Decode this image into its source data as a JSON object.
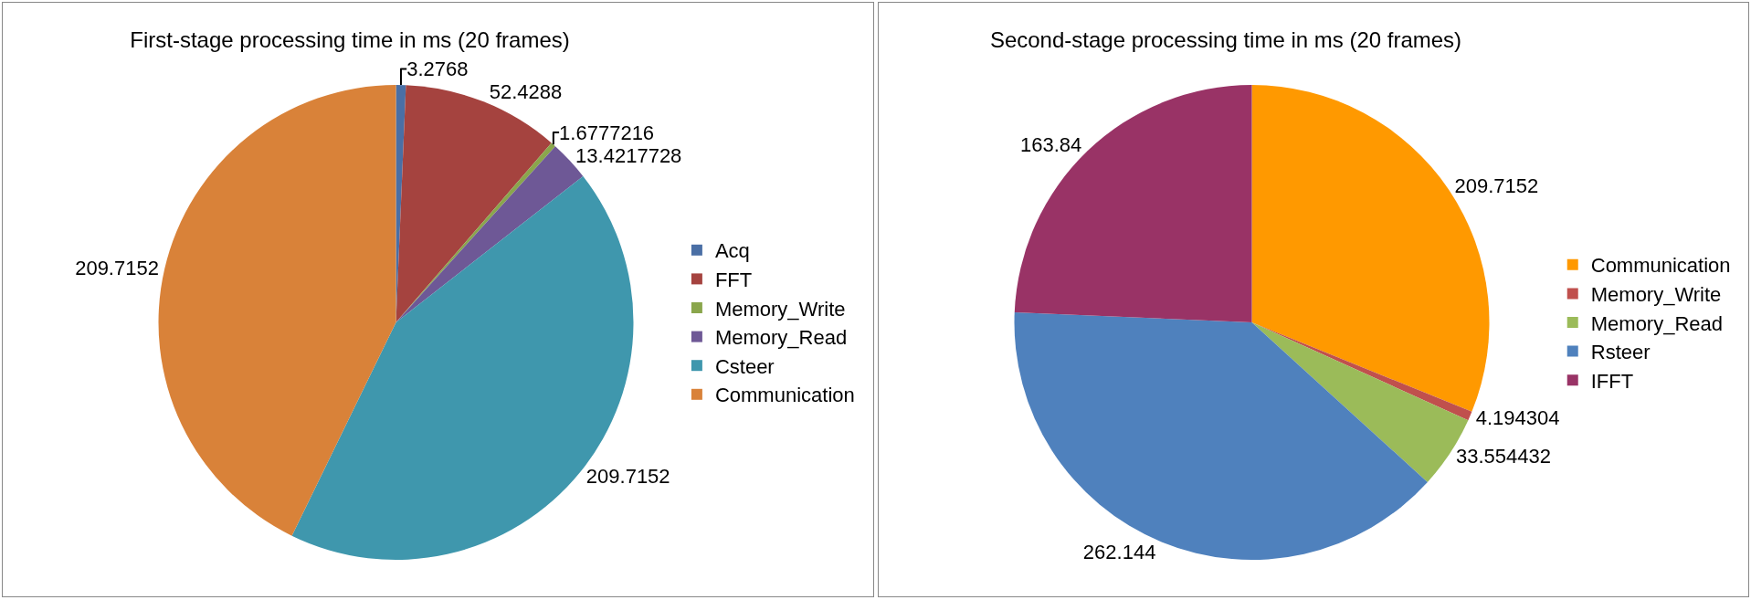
{
  "chart_data": [
    {
      "type": "pie",
      "title": "First-stage processing time in ms (20 frames)",
      "categories": [
        "Acq",
        "FFT",
        "Memory_Write",
        "Memory_Read",
        "Csteer",
        "Communication"
      ],
      "values": [
        3.2768,
        52.4288,
        1.6777216,
        13.4217728,
        209.7152,
        209.7152
      ],
      "colors": [
        "#4a6fa5",
        "#a5433f",
        "#8aa64c",
        "#6e5896",
        "#3f97ad",
        "#d98239"
      ],
      "data_labels": true,
      "legend": "right"
    },
    {
      "type": "pie",
      "title": "Second-stage processing time in ms (20 frames)",
      "categories": [
        "Communication",
        "Memory_Write",
        "Memory_Read",
        "Rsteer",
        "IFFT"
      ],
      "values": [
        209.7152,
        4.194304,
        33.554432,
        262.144,
        163.84
      ],
      "colors": [
        "#ff9900",
        "#c0504d",
        "#9bbb59",
        "#4f81bd",
        "#993366"
      ],
      "data_labels": true,
      "legend": "right"
    }
  ]
}
